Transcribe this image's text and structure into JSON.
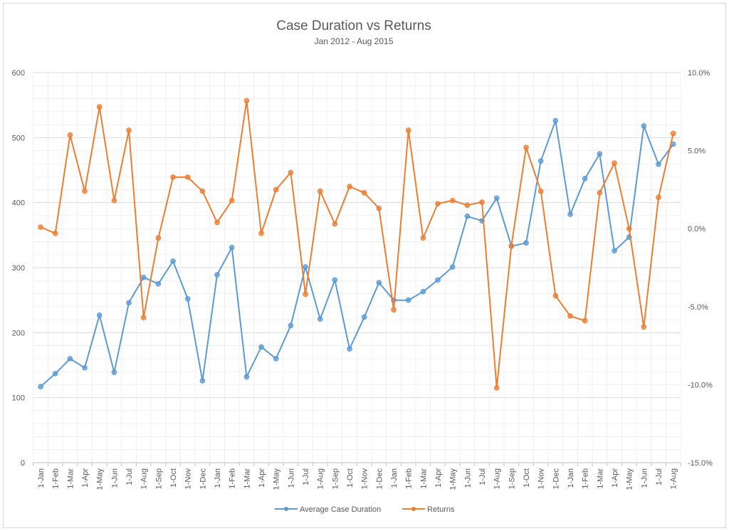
{
  "chart_data": {
    "type": "line",
    "title": "Case Duration vs Returns",
    "subtitle": "Jan 2012 - Aug 2015",
    "categories": [
      "1-Jan",
      "1-Feb",
      "1-Mar",
      "1-Apr",
      "1-May",
      "1-Jun",
      "1-Jul",
      "1-Aug",
      "1-Sep",
      "1-Oct",
      "1-Nov",
      "1-Dec",
      "1-Jan",
      "1-Feb",
      "1-Mar",
      "1-Apr",
      "1-May",
      "1-Jun",
      "1-Jul",
      "1-Aug",
      "1-Sep",
      "1-Oct",
      "1-Nov",
      "1-Dec",
      "1-Jan",
      "1-Feb",
      "1-Mar",
      "1-Apr",
      "1-May",
      "1-Jun",
      "1-Jul",
      "1-Aug",
      "1-Sep",
      "1-Oct",
      "1-Nov",
      "1-Dec",
      "1-Jan",
      "1-Feb",
      "1-Mar",
      "1-Apr",
      "1-May",
      "1-Jun",
      "1-Jul",
      "1-Aug"
    ],
    "y_left": {
      "ylim": [
        0,
        600
      ],
      "ticks": [
        "0",
        "100",
        "200",
        "300",
        "400",
        "500",
        "600"
      ]
    },
    "y_right": {
      "ylim": [
        -15,
        10
      ],
      "ticks": [
        "-15.0%",
        "-10.0%",
        "-5.0%",
        "0.0%",
        "5.0%",
        "10.0%"
      ]
    },
    "grid": true,
    "legend": "bottom",
    "series": [
      {
        "name": "Average Case Duration",
        "axis": "left",
        "color": "#5b9bd5",
        "values": [
          117,
          137,
          160,
          146,
          227,
          139,
          246,
          285,
          275,
          310,
          252,
          126,
          289,
          331,
          132,
          178,
          160,
          211,
          301,
          221,
          281,
          175,
          224,
          277,
          250,
          250,
          263,
          281,
          301,
          379,
          372,
          407,
          333,
          338,
          464,
          526,
          382,
          437,
          475,
          326,
          347,
          518,
          459,
          490
        ]
      },
      {
        "name": "Returns",
        "axis": "right",
        "color": "#ed7d31",
        "values": [
          0.1,
          -0.3,
          6.0,
          2.4,
          7.8,
          1.8,
          6.3,
          -5.7,
          -0.6,
          3.3,
          3.3,
          2.4,
          0.4,
          1.8,
          8.2,
          -0.3,
          2.5,
          3.6,
          -4.2,
          2.4,
          0.3,
          2.7,
          2.3,
          1.3,
          -5.2,
          6.3,
          -0.6,
          1.6,
          1.8,
          1.5,
          1.7,
          -10.2,
          -1.1,
          5.2,
          2.4,
          -4.3,
          -5.6,
          -5.9,
          2.3,
          4.2,
          0.0,
          -6.3,
          2.0,
          6.1
        ]
      }
    ]
  }
}
